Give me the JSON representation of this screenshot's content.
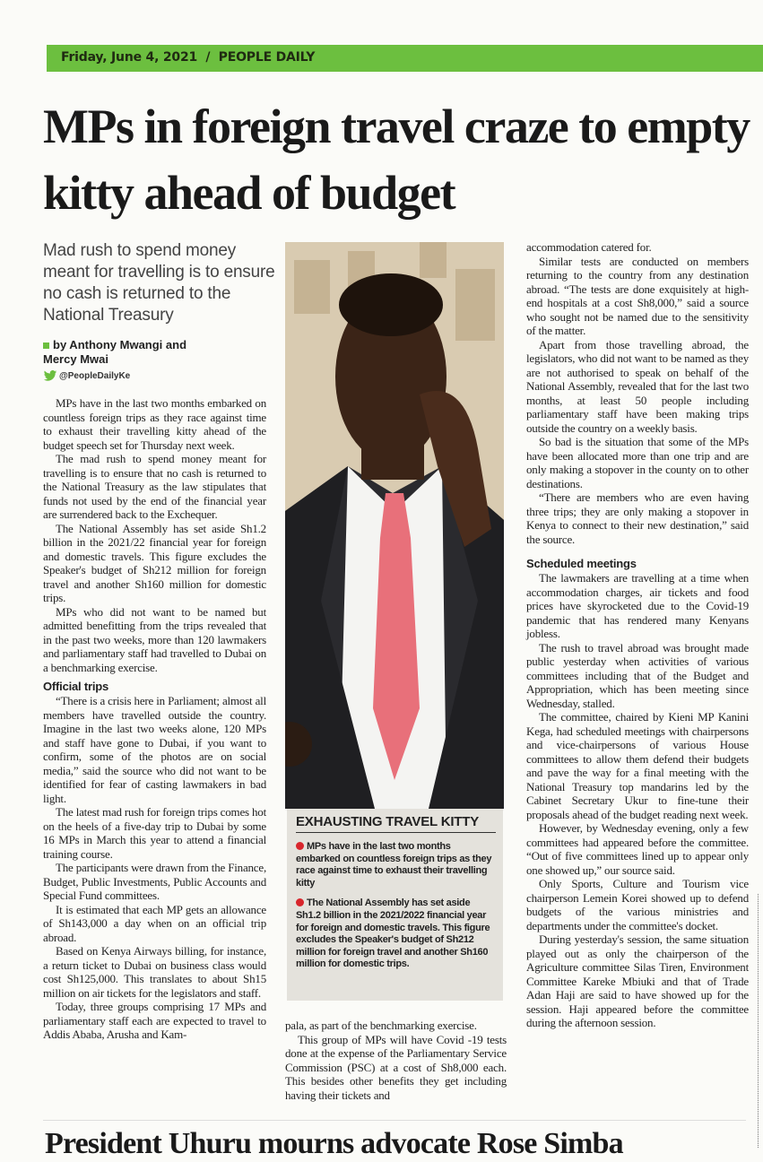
{
  "header": {
    "dateline": "Friday, June 4, 2021  /  PEOPLE DAILY"
  },
  "colors": {
    "brand_green": "#6cbf3f",
    "bullet_red": "#d8262c"
  },
  "article": {
    "headline": "MPs in foreign travel craze to empty kitty ahead of budget",
    "standfirst": "Mad rush to spend money meant for travelling is to ensure no cash is returned to the National Treasury",
    "byline": "by Anthony Mwangi and Mercy Mwai",
    "twitter_handle": "@PeopleDailyKe",
    "col1": [
      "MPs have in the last two months embarked on countless foreign trips as they race against time to exhaust their travelling kitty ahead of the budget speech set for Thursday next week.",
      "The mad rush to spend money meant for travelling is to ensure that no cash is returned to the National Treasury as the law stipulates that funds not used by the end of the financial year are surrendered back to the Exchequer.",
      "The National Assembly has set aside Sh1.2 billion in the 2021/22 financial year for foreign and domestic travels. This figure excludes the Speaker's budget of Sh212 million for foreign travel and another Sh160 million for domestic trips.",
      "MPs who did not want to be named but admitted benefitting from the trips revealed that in the past two weeks, more than 120 lawmakers and parliamentary staff had travelled to Dubai on a benchmarking exercise."
    ],
    "subhead1": "Official trips",
    "col1b": [
      "“There is a crisis here in Parliament; almost all members have travelled outside the country. Imagine in the last two weeks alone, 120 MPs and staff have gone to Dubai, if you want to confirm, some of the photos are on social media,” said the source who did not want to be identified for fear of casting lawmakers in bad light.",
      "The latest mad rush for foreign trips comes hot on the heels of a five-day trip to Dubai by some 16 MPs in March this year to attend a financial training course.",
      "The participants were drawn from the Finance, Budget, Public Investments, Public Accounts and Special Fund committees.",
      "It is estimated that each MP gets an allowance of Sh143,000 a day when on an official trip abroad.",
      "Based on Kenya Airways billing, for instance, a return ticket to Dubai on business class would cost Sh125,000. This translates to about Sh15 million on air tickets for the legislators and staff.",
      "Today, three groups comprising 17 MPs and parliamentary staff each are expected to travel to Addis Ababa, Arusha and Kam-"
    ],
    "col2": [
      "pala, as part of the benchmarking exercise.",
      "This group of MPs will have Covid -19 tests done at the expense of the Parliamentary Service Commission (PSC) at a cost of Sh8,000 each. This besides other benefits they get including having their tickets and"
    ],
    "col3": [
      "accommodation catered for.",
      "Similar tests are conducted on members returning to the country from any destination abroad.  “The tests are done exquisitely at high-end hospitals at a cost Sh8,000,” said a source who sought not be named due to the sensitivity of the matter.",
      "Apart from those travelling abroad, the legislators, who did not want to be named as they are not authorised to speak on behalf of the National Assembly, revealed that for the last two months, at least 50 people including parliamentary staff have been making trips outside the country on a weekly basis.",
      "So bad is the situation that some of the MPs have been allocated more than one trip and are only making a stopover in the county on to other destinations.",
      "“There are members who are even having three trips; they are only making a stopover in Kenya to connect to their new destination,” said the source."
    ],
    "subhead2": "Scheduled meetings",
    "col3b": [
      "The lawmakers are travelling at a time when accommodation charges, air tickets and food prices have skyrocketed due to the Covid-19 pandemic that has rendered many Kenyans jobless.",
      "The rush to travel abroad was brought made public yesterday when activities of various committees including that of the Budget and Appropriation, which has been meeting since Wednesday, stalled.",
      "The committee, chaired by Kieni MP Kanini Kega, had scheduled meetings with chairpersons and vice-chairpersons of various House committees to allow them defend their budgets and pave the way for a final meeting with the National Treasury top mandarins led by the Cabinet Secretary Ukur to fine-tune their proposals ahead of the budget reading next week.",
      "However, by Wednesday evening, only a few committees had appeared before the committee. “Out of five committees lined up to appear only one showed up,” our source said.",
      "Only Sports, Culture and Tourism vice chairperson Lemein Korei showed up to defend budgets of the various ministries and departments under the committee's docket.",
      "During yesterday's session, the same situation played out as only the chairperson of the Agriculture committee Silas Tiren, Environment Committee Kareke Mbiuki and that of Trade Adan Haji are said to have showed up for the session. Haji appeared before the committee during the afternoon session."
    ]
  },
  "sidebar": {
    "title": "EXHAUSTING TRAVEL KITTY",
    "bullets": [
      "MPs have in the last two months embarked on countless foreign trips as they race against time to exhaust their travelling kitty",
      "The National Assembly has set aside Sh1.2 billion in the 2021/2022 financial year for foreign and domestic travels. This figure excludes the Speaker's budget of Sh212 million for foreign travel and another Sh160 million for domestic trips."
    ]
  },
  "next_story": {
    "headline": "President Uhuru mourns advocate Rose Simba"
  }
}
